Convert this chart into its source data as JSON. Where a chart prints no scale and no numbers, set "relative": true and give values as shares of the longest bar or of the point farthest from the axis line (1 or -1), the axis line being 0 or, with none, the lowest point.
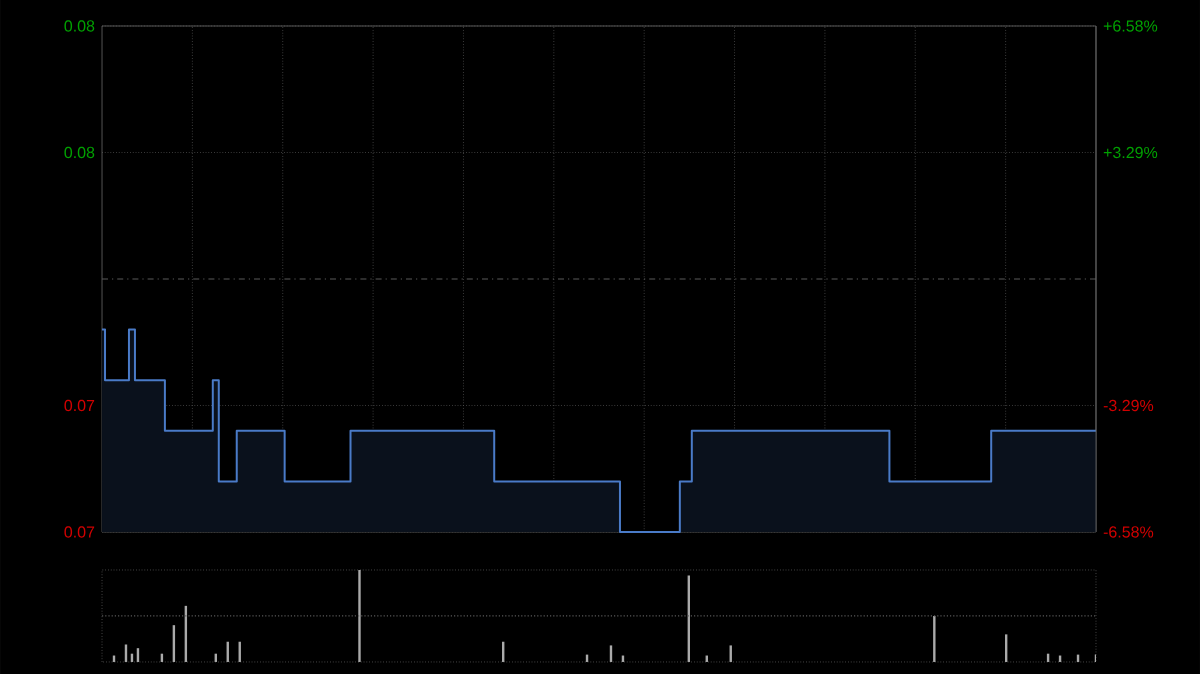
{
  "chart_data": [
    {
      "type": "area",
      "color": "#4a7bc8",
      "categories": [
        null,
        null,
        null,
        null,
        null,
        null,
        null,
        null,
        null,
        null,
        null,
        null,
        null,
        null,
        null,
        null,
        null,
        null,
        null,
        null,
        null,
        null,
        null,
        null,
        null,
        null,
        null,
        null,
        null,
        null,
        null,
        null,
        null,
        null,
        null,
        null,
        null,
        null,
        null,
        null,
        null,
        null,
        null,
        null,
        null,
        null,
        null,
        null,
        null,
        null,
        null,
        null,
        null,
        null,
        null,
        null,
        null,
        null,
        null,
        null,
        null,
        null,
        null,
        null,
        null,
        null,
        null,
        null,
        null,
        null,
        null,
        null,
        null,
        null,
        null,
        null,
        null,
        null,
        null,
        null,
        null,
        null,
        null,
        null,
        null,
        null,
        null,
        null,
        null,
        null,
        null,
        null,
        null,
        null,
        null,
        null,
        null,
        null,
        null,
        null,
        null,
        null,
        null,
        null,
        null,
        null,
        null,
        null,
        null,
        null,
        null,
        null,
        null,
        null,
        null,
        null,
        null,
        null,
        null,
        null,
        null,
        null,
        null,
        null,
        null,
        null,
        null,
        null,
        null,
        null,
        null,
        null,
        null,
        null,
        null,
        null,
        null,
        null,
        null,
        null,
        null,
        null,
        null,
        null,
        null,
        null,
        null,
        null,
        null,
        null,
        null,
        null,
        null,
        null,
        null,
        null,
        null,
        null,
        null,
        null,
        null,
        null,
        null,
        null,
        null,
        null,
        null
      ],
      "values": [
        0.075,
        0.074,
        0.074,
        0.074,
        0.074,
        0.075,
        0.074,
        0.074,
        0.074,
        0.074,
        0.074,
        0.073,
        0.073,
        0.073,
        0.073,
        0.073,
        0.073,
        0.073,
        0.073,
        0.074,
        0.072,
        0.072,
        0.072,
        0.073,
        0.073,
        0.073,
        0.073,
        0.073,
        0.073,
        0.073,
        0.073,
        0.072,
        0.072,
        0.072,
        0.072,
        0.072,
        0.072,
        0.072,
        0.072,
        0.072,
        0.072,
        0.072,
        0.073,
        0.073,
        0.073,
        0.073,
        0.073,
        0.073,
        0.073,
        0.073,
        0.073,
        0.073,
        0.073,
        0.073,
        0.073,
        0.073,
        0.073,
        0.073,
        0.073,
        0.073,
        0.073,
        0.073,
        0.073,
        0.073,
        0.073,
        0.073,
        0.072,
        0.072,
        0.072,
        0.072,
        0.072,
        0.072,
        0.072,
        0.072,
        0.072,
        0.072,
        0.072,
        0.072,
        0.072,
        0.072,
        0.072,
        0.072,
        0.072,
        0.072,
        0.072,
        0.072,
        0.072,
        0.071,
        0.071,
        0.071,
        0.071,
        0.071,
        0.071,
        0.071,
        0.071,
        0.071,
        0.071,
        0.072,
        0.072,
        0.073,
        0.073,
        0.073,
        0.073,
        0.073,
        0.073,
        0.073,
        0.073,
        0.073,
        0.073,
        0.073,
        0.073,
        0.073,
        0.073,
        0.073,
        0.073,
        0.073,
        0.073,
        0.073,
        0.073,
        0.073,
        0.073,
        0.073,
        0.073,
        0.073,
        0.073,
        0.073,
        0.073,
        0.073,
        0.073,
        0.073,
        0.073,
        0.073,
        0.072,
        0.072,
        0.072,
        0.072,
        0.072,
        0.072,
        0.072,
        0.072,
        0.072,
        0.072,
        0.072,
        0.072,
        0.072,
        0.072,
        0.072,
        0.072,
        0.072,
        0.073,
        0.073,
        0.073,
        0.073,
        0.073,
        0.073,
        0.073,
        0.073,
        0.073,
        0.073,
        0.073,
        0.073,
        0.073,
        0.073,
        0.073,
        0.073,
        0.073,
        0.073
      ],
      "ylim": [
        0.071,
        0.081
      ],
      "yticks": [
        {
          "value": 0.081,
          "label": "0.08"
        },
        {
          "value": 0.0785,
          "label": "0.08"
        },
        {
          "value": 0.0735,
          "label": "0.07"
        },
        {
          "value": 0.071,
          "label": "0.07"
        }
      ],
      "y2lim": [
        -6.58,
        6.58
      ],
      "y2ticks": [
        {
          "value": 6.58,
          "label": "+6.58%"
        },
        {
          "value": 3.29,
          "label": "+3.29%"
        },
        {
          "value": -3.29,
          "label": "-3.29%"
        },
        {
          "value": -6.58,
          "label": "-6.58%"
        }
      ],
      "ref_lines": [
        {
          "axis": "y",
          "value": 0.076,
          "line_style": "dashed"
        }
      ],
      "grid": true,
      "tick_labels": "y",
      "marker": "none",
      "line_style": "solid"
    },
    {
      "type": "bar",
      "relative": true,
      "color": "#aaaaaa",
      "tick_labels": false,
      "ref_lines": [
        {
          "axis": "y",
          "value": 0.5,
          "line_style": "dotted"
        }
      ],
      "categories": [
        null,
        null,
        null,
        null,
        null,
        null,
        null,
        null,
        null,
        null,
        null,
        null,
        null,
        null,
        null,
        null,
        null,
        null,
        null,
        null,
        null,
        null,
        null,
        null,
        null,
        null,
        null,
        null,
        null,
        null,
        null,
        null,
        null,
        null,
        null,
        null,
        null,
        null,
        null,
        null,
        null,
        null,
        null,
        null,
        null,
        null,
        null,
        null,
        null,
        null,
        null,
        null,
        null,
        null,
        null,
        null,
        null,
        null,
        null,
        null,
        null,
        null,
        null,
        null,
        null,
        null,
        null,
        null,
        null,
        null,
        null,
        null,
        null,
        null,
        null,
        null,
        null,
        null,
        null,
        null,
        null,
        null,
        null,
        null,
        null,
        null,
        null,
        null,
        null,
        null,
        null,
        null,
        null,
        null,
        null,
        null,
        null,
        null,
        null,
        null,
        null,
        null,
        null,
        null,
        null,
        null,
        null,
        null,
        null,
        null,
        null,
        null,
        null,
        null,
        null,
        null,
        null,
        null,
        null,
        null,
        null,
        null,
        null,
        null,
        null,
        null,
        null,
        null,
        null,
        null,
        null,
        null,
        null,
        null,
        null,
        null,
        null,
        null,
        null,
        null,
        null,
        null,
        null,
        null,
        null,
        null,
        null,
        null,
        null,
        null,
        null,
        null,
        null,
        null,
        null,
        null,
        null,
        null,
        null,
        null,
        null,
        null,
        null,
        null,
        null,
        null,
        null
      ],
      "values": [
        0,
        0,
        0.07,
        0,
        0.19,
        0.09,
        0.15,
        0,
        0,
        0,
        0.09,
        0,
        0.4,
        0,
        0.61,
        0,
        0,
        0,
        0,
        0.09,
        0,
        0.22,
        0,
        0.22,
        0,
        0,
        0,
        0,
        0,
        0,
        0,
        0,
        0,
        0,
        0,
        0,
        0,
        0,
        0,
        0,
        0,
        0,
        0,
        1,
        0,
        0,
        0,
        0,
        0,
        0,
        0,
        0,
        0,
        0,
        0,
        0,
        0,
        0,
        0,
        0,
        0,
        0,
        0,
        0,
        0,
        0,
        0,
        0.22,
        0,
        0,
        0,
        0,
        0,
        0,
        0,
        0,
        0,
        0,
        0,
        0,
        0,
        0.08,
        0,
        0,
        0,
        0.18,
        0,
        0.07,
        0,
        0,
        0,
        0,
        0,
        0,
        0,
        0,
        0,
        0,
        0.94,
        0,
        0,
        0.07,
        0,
        0,
        0,
        0.18,
        0,
        0,
        0,
        0,
        0,
        0,
        0,
        0,
        0,
        0,
        0,
        0,
        0,
        0,
        0,
        0,
        0,
        0,
        0,
        0,
        0,
        0,
        0,
        0,
        0,
        0,
        0,
        0,
        0,
        0,
        0,
        0,
        0,
        0.5,
        0,
        0,
        0,
        0,
        0,
        0,
        0,
        0,
        0,
        0,
        0,
        0.3,
        0,
        0,
        0,
        0,
        0,
        0,
        0.09,
        0,
        0.07,
        0,
        0,
        0.08,
        0,
        0,
        0.08
      ]
    }
  ]
}
